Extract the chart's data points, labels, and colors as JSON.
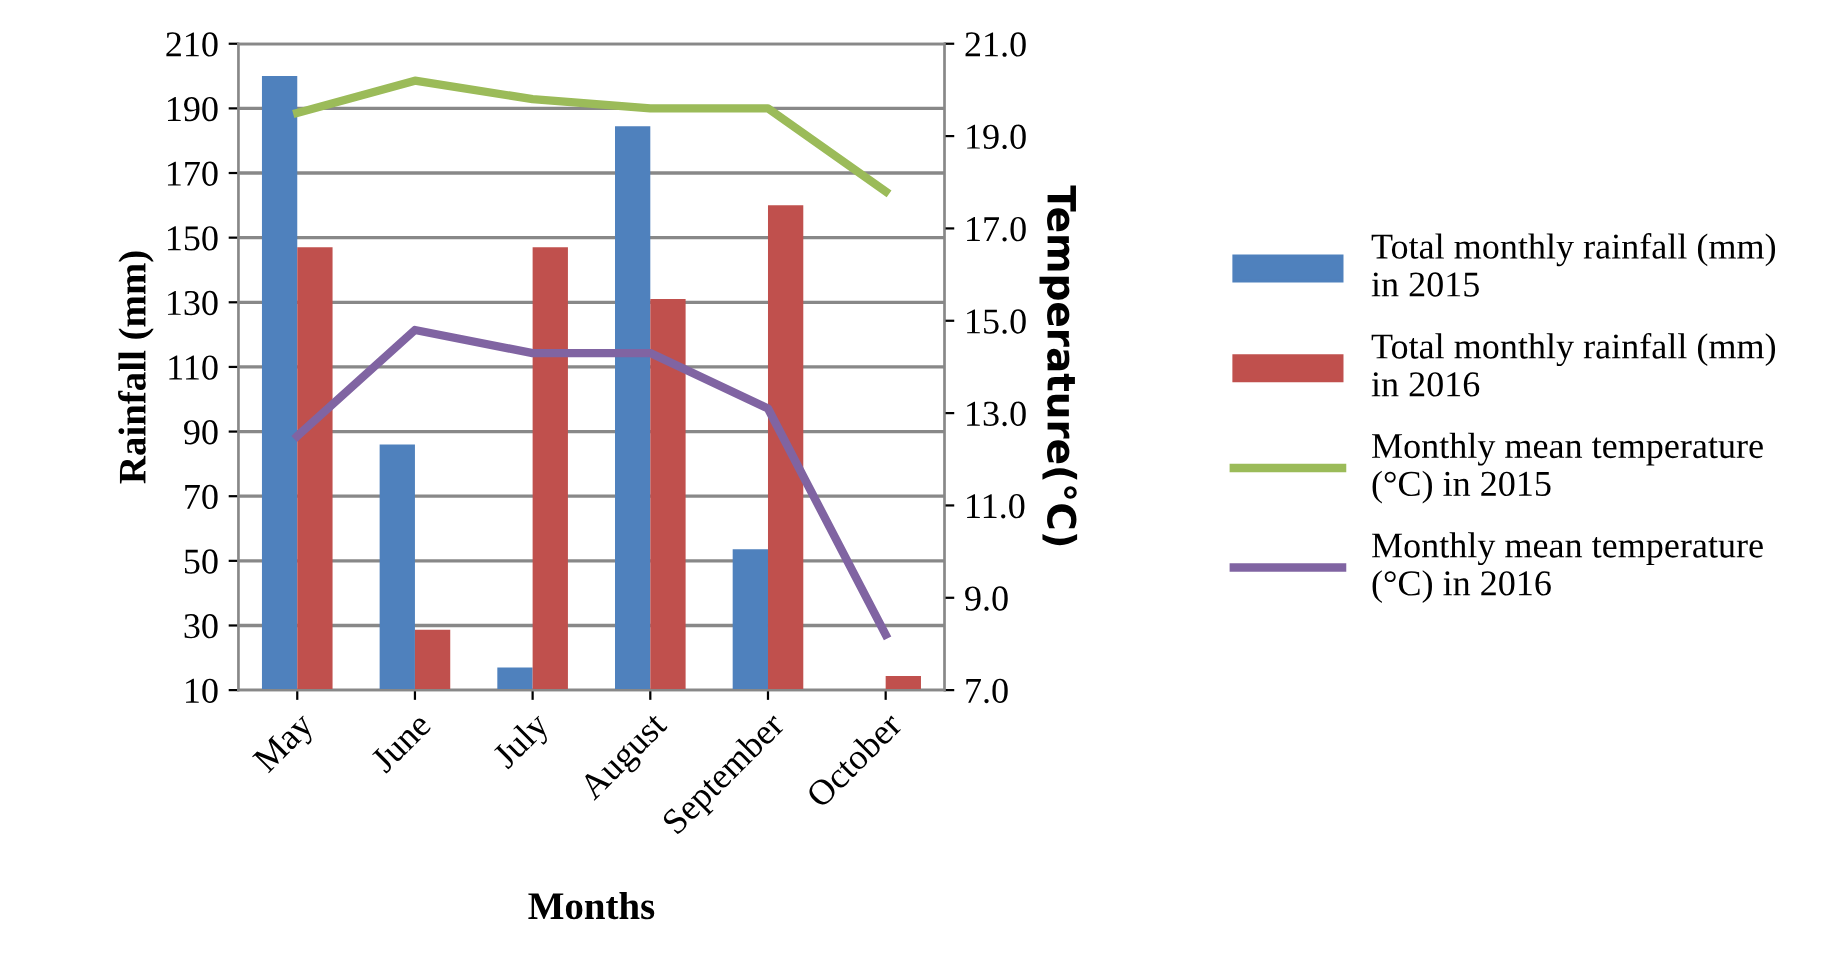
{
  "chart_data": {
    "type": "bar",
    "xlabel": "Months",
    "ylabel": "Rainfall (mm)",
    "y2label": "Temperature(°C)",
    "categories": [
      "May",
      "June",
      "July",
      "August",
      "September",
      "October"
    ],
    "series": [
      {
        "name": "Total monthly rainfall (mm) in 2015",
        "color": "#4f81bd",
        "values": [
          200,
          86,
          17,
          184.5,
          53.6,
          null
        ]
      },
      {
        "name": "Total monthly rainfall (mm) in 2016",
        "color": "#c0504d",
        "values": [
          147,
          28.7,
          147,
          131,
          160,
          14.4
        ]
      },
      {
        "name": "Monthly mean temperature (°C) in 2015",
        "type": "line",
        "axis": "y2",
        "color": "#9bbb59",
        "values": [
          19.5,
          20.2,
          19.8,
          19.6,
          19.6,
          17.8
        ]
      },
      {
        "name": "Monthly mean temperature (°C) in 2016",
        "type": "line",
        "axis": "y2",
        "color": "#8064a2",
        "values": [
          12.5,
          14.8,
          14.3,
          14.3,
          13.1,
          8.2
        ]
      }
    ],
    "ylim": [
      10,
      210
    ],
    "yticks": [
      10,
      30,
      50,
      70,
      90,
      110,
      130,
      150,
      170,
      190,
      210
    ],
    "y2lim": [
      7.0,
      21.0
    ],
    "y2ticks": [
      {
        "value": 7,
        "label": "7.0"
      },
      {
        "value": 9,
        "label": "9.0"
      },
      {
        "value": 11,
        "label": "11.0"
      },
      {
        "value": 13,
        "label": "13.0"
      },
      {
        "value": 15,
        "label": "15.0"
      },
      {
        "value": 17,
        "label": "17.0"
      },
      {
        "value": 19,
        "label": "19.0"
      },
      {
        "value": 21,
        "label": "21.0"
      }
    ],
    "grid": "y",
    "legend": "right",
    "marker": "none",
    "line_style": "solid"
  }
}
